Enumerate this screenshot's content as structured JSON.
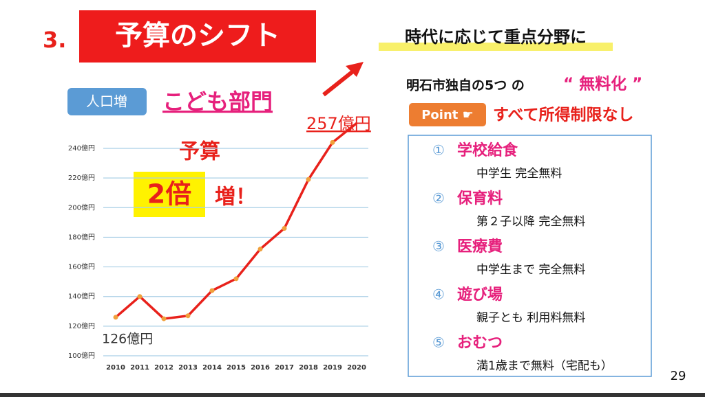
{
  "slide": {
    "number_prefix": "3.",
    "title": "予算のシフト",
    "heading": "時代に応じて重点分野に",
    "tag": "人口増",
    "section": "こども部門",
    "budget_line1": "予算",
    "budget_double": "2倍",
    "budget_increase": "増！",
    "free_intro": "明石市独自の5つ の",
    "free_word": "“ 無料化 ”",
    "point_badge": "Point ☛",
    "point_text": "すべて所得制限なし",
    "items": [
      {
        "num": "①",
        "title": "学校給食",
        "desc": "中学生 完全無料"
      },
      {
        "num": "②",
        "title": "保育料",
        "desc": "第２子以降 完全無料"
      },
      {
        "num": "③",
        "title": "医療費",
        "desc": "中学生まで 完全無料"
      },
      {
        "num": "④",
        "title": "遊び場",
        "desc": "親子とも 利用料無料"
      },
      {
        "num": "⑤",
        "title": "おむつ",
        "desc": "満1歳まで無料（宅配も）"
      }
    ],
    "page": "29"
  },
  "chart_data": {
    "type": "line",
    "categories": [
      "2010",
      "2011",
      "2012",
      "2013",
      "2014",
      "2015",
      "2016",
      "2017",
      "2018",
      "2019",
      "2020"
    ],
    "values": [
      126,
      140,
      125,
      127,
      144,
      152,
      172,
      186,
      219,
      244,
      257
    ],
    "color": "#e8211b",
    "marker_color": "#f0a03c",
    "annotations": [
      "126億円",
      "257億円"
    ],
    "ylim": [
      100,
      240
    ],
    "yticks": [
      {
        "value": 100,
        "label": "100億円"
      },
      {
        "value": 120,
        "label": "120億円"
      },
      {
        "value": 140,
        "label": "140億円"
      },
      {
        "value": 160,
        "label": "160億円"
      },
      {
        "value": 180,
        "label": "180億円"
      },
      {
        "value": 200,
        "label": "200億円"
      },
      {
        "value": 220,
        "label": "220億円"
      },
      {
        "value": 240,
        "label": "240億円"
      }
    ],
    "grid": true
  }
}
